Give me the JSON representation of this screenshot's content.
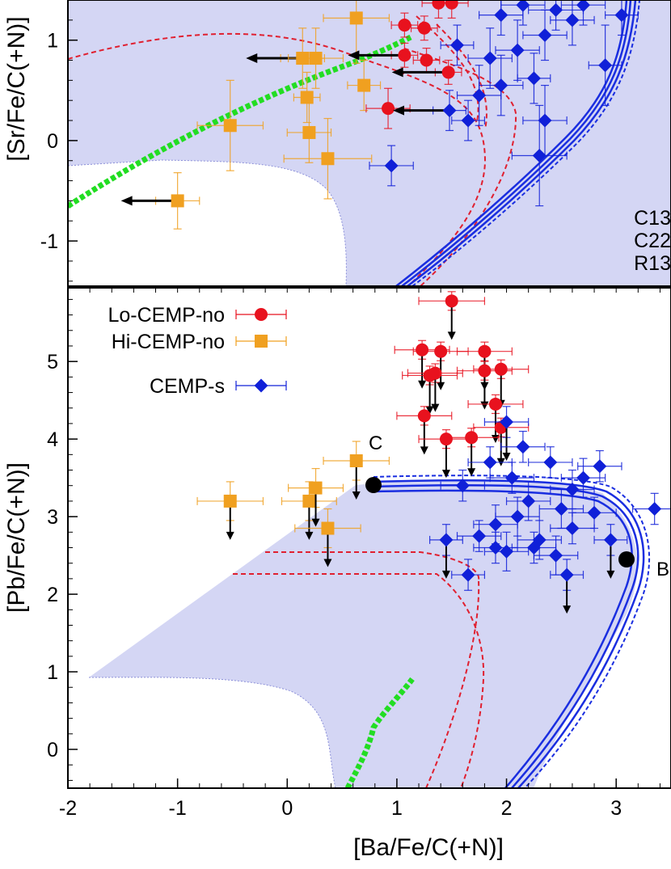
{
  "chart_data": [
    {
      "type": "scatter",
      "panel": "top",
      "ylabel": "[Sr/Fe/C(+N)]",
      "xlim": [
        -2,
        3.5
      ],
      "ylim": [
        -1.45,
        1.4
      ],
      "yticks": [
        -1,
        0,
        1
      ],
      "model_legend": [
        "C13",
        "C22",
        "R13"
      ],
      "colors": {
        "lo": "#e8121e",
        "hi": "#f0a020",
        "s": "#1020d8",
        "shade": "#d4d6f4",
        "green": "#22dd22",
        "red": "#e02030",
        "blue": "#1a2ee0"
      },
      "series": [
        {
          "name": "Hi-CEMP-no",
          "points": [
            [
              -1.0,
              -0.6,
              0.2,
              0.28,
              1
            ],
            [
              -0.52,
              0.15,
              0.3,
              0.45,
              0
            ],
            [
              0.18,
              0.43,
              0.12,
              0.25,
              0
            ],
            [
              0.14,
              0.82,
              0.2,
              0.3,
              1
            ],
            [
              0.26,
              0.82,
              0.25,
              0.3,
              0
            ],
            [
              0.63,
              1.22,
              0.3,
              0.45,
              0
            ],
            [
              0.7,
              0.55,
              0.15,
              0.25,
              0
            ],
            [
              0.37,
              -0.18,
              0.4,
              0.4,
              0
            ],
            [
              0.2,
              0.08,
              0.2,
              0.3,
              0
            ]
          ]
        },
        {
          "name": "Lo-CEMP-no",
          "points": [
            [
              1.07,
              1.15,
              0.12,
              0.12,
              0
            ],
            [
              1.25,
              1.12,
              0.12,
              0.12,
              0
            ],
            [
              1.27,
              0.8,
              0.12,
              0.12,
              0
            ],
            [
              1.07,
              0.85,
              0.12,
              0.12,
              1
            ],
            [
              1.47,
              0.68,
              0.12,
              0.12,
              1
            ],
            [
              0.92,
              0.32,
              0.2,
              0.2,
              0
            ],
            [
              1.38,
              1.37,
              0.15,
              0.15,
              0
            ],
            [
              1.5,
              1.37,
              0.15,
              0.15,
              0
            ]
          ]
        },
        {
          "name": "CEMP-s",
          "points": [
            [
              0.95,
              -0.25,
              0.2,
              0.2,
              0
            ],
            [
              1.48,
              0.3,
              0.15,
              0.2,
              1
            ],
            [
              1.75,
              0.45,
              0.2,
              0.3,
              0
            ],
            [
              1.95,
              0.55,
              0.2,
              0.3,
              0
            ],
            [
              1.85,
              0.82,
              0.2,
              0.3,
              0
            ],
            [
              2.25,
              0.62,
              0.15,
              0.25,
              0
            ],
            [
              2.1,
              0.9,
              0.2,
              0.3,
              0
            ],
            [
              2.35,
              1.05,
              0.2,
              0.25,
              0
            ],
            [
              2.6,
              1.2,
              0.2,
              0.25,
              0
            ],
            [
              2.9,
              0.75,
              0.15,
              0.4,
              0
            ],
            [
              2.35,
              0.2,
              0.2,
              0.35,
              0
            ],
            [
              2.3,
              -0.15,
              0.25,
              0.5,
              0
            ],
            [
              1.95,
              1.25,
              0.2,
              0.2,
              0
            ],
            [
              2.15,
              1.35,
              0.2,
              0.2,
              0
            ],
            [
              2.45,
              1.3,
              0.25,
              0.2,
              0
            ],
            [
              2.7,
              1.35,
              0.2,
              0.2,
              0
            ],
            [
              1.65,
              0.2,
              0.15,
              0.2,
              0
            ],
            [
              1.55,
              0.95,
              0.15,
              0.2,
              0
            ],
            [
              3.05,
              1.25,
              0.15,
              0.2,
              0
            ]
          ]
        }
      ]
    },
    {
      "type": "scatter",
      "panel": "bottom",
      "ylabel": "[Pb/Fe/C(+N)]",
      "xlabel": "[Ba/Fe/C(+N)]",
      "xlim": [
        -2,
        3.5
      ],
      "ylim": [
        -0.5,
        5.95
      ],
      "xticks": [
        -2,
        -1,
        0,
        1,
        2,
        3
      ],
      "yticks": [
        0,
        1,
        2,
        3,
        4,
        5
      ],
      "legend": [
        "Lo-CEMP-no",
        "Hi-CEMP-no",
        "CEMP-s"
      ],
      "labels": [
        "C",
        "B"
      ],
      "series": [
        {
          "name": "Lo-CEMP-no",
          "points": [
            [
              1.5,
              5.78,
              0.3,
              0.12,
              1
            ],
            [
              1.23,
              5.15,
              0.25,
              0.12,
              1
            ],
            [
              1.4,
              5.13,
              0.25,
              0.12,
              1
            ],
            [
              1.35,
              4.85,
              0.25,
              0.12,
              1
            ],
            [
              1.3,
              4.82,
              0.25,
              0.12,
              1
            ],
            [
              1.25,
              4.3,
              0.25,
              0.12,
              1
            ],
            [
              1.45,
              4.0,
              0.25,
              0.12,
              1
            ],
            [
              1.8,
              5.13,
              0.25,
              0.12,
              1
            ],
            [
              1.8,
              4.88,
              0.25,
              0.12,
              1
            ],
            [
              1.95,
              4.9,
              0.25,
              0.12,
              1
            ],
            [
              1.9,
              4.45,
              0.25,
              0.12,
              1
            ],
            [
              1.95,
              4.15,
              0.25,
              0.12,
              1
            ],
            [
              1.68,
              4.02,
              0.25,
              0.12,
              1
            ]
          ]
        },
        {
          "name": "Hi-CEMP-no",
          "points": [
            [
              -0.52,
              3.2,
              0.3,
              0.25,
              1
            ],
            [
              0.2,
              3.2,
              0.25,
              0.25,
              1
            ],
            [
              0.26,
              3.37,
              0.25,
              0.25,
              1
            ],
            [
              0.63,
              3.72,
              0.3,
              0.25,
              1
            ],
            [
              0.37,
              2.85,
              0.3,
              0.25,
              1
            ]
          ]
        },
        {
          "name": "CEMP-s",
          "points": [
            [
              1.45,
              2.7,
              0.15,
              0.2,
              1
            ],
            [
              1.6,
              3.4,
              0.2,
              0.2,
              0
            ],
            [
              1.75,
              2.75,
              0.2,
              0.2,
              0
            ],
            [
              1.9,
              2.9,
              0.2,
              0.25,
              0
            ],
            [
              2.0,
              2.55,
              0.2,
              0.25,
              0
            ],
            [
              2.1,
              3.0,
              0.2,
              0.25,
              0
            ],
            [
              2.2,
              3.2,
              0.2,
              0.25,
              0
            ],
            [
              2.3,
              2.7,
              0.2,
              0.25,
              0
            ],
            [
              2.45,
              2.5,
              0.2,
              0.25,
              0
            ],
            [
              2.5,
              3.1,
              0.2,
              0.25,
              0
            ],
            [
              2.6,
              3.35,
              0.2,
              0.25,
              0
            ],
            [
              2.7,
              3.5,
              0.2,
              0.25,
              0
            ],
            [
              2.85,
              3.65,
              0.2,
              0.2,
              0
            ],
            [
              2.95,
              2.7,
              0.15,
              0.2,
              1
            ],
            [
              2.55,
              2.25,
              0.15,
              0.2,
              1
            ],
            [
              2.0,
              4.22,
              0.2,
              0.2,
              1
            ],
            [
              2.15,
              3.9,
              0.2,
              0.2,
              0
            ],
            [
              1.65,
              2.25,
              0.15,
              0.2,
              0
            ],
            [
              2.8,
              3.05,
              0.2,
              0.2,
              0
            ],
            [
              2.4,
              3.7,
              0.2,
              0.2,
              0
            ],
            [
              2.05,
              3.5,
              0.2,
              0.2,
              0
            ],
            [
              3.35,
              3.1,
              0.2,
              0.2,
              0
            ],
            [
              1.85,
              3.7,
              0.2,
              0.2,
              0
            ],
            [
              2.6,
              2.85,
              0.2,
              0.2,
              0
            ],
            [
              2.25,
              2.6,
              0.2,
              0.2,
              0
            ],
            [
              1.9,
              2.6,
              0.2,
              0.2,
              0
            ]
          ]
        }
      ]
    }
  ]
}
